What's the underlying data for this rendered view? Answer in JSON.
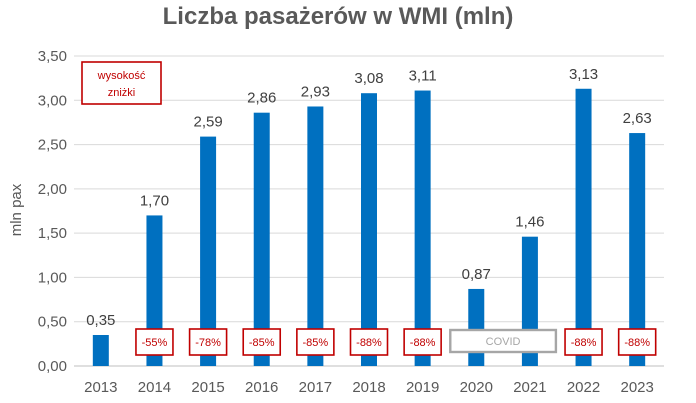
{
  "chart_data": {
    "type": "bar",
    "title": "Liczba pasażerów w WMI (mln)",
    "ylabel": "mln pax",
    "xlabel": "",
    "categories": [
      "2013",
      "2014",
      "2015",
      "2016",
      "2017",
      "2018",
      "2019",
      "2020",
      "2021",
      "2022",
      "2023"
    ],
    "values": [
      0.35,
      1.7,
      2.59,
      2.86,
      2.93,
      3.08,
      3.11,
      0.87,
      1.46,
      3.13,
      2.63
    ],
    "value_labels": [
      "0,35",
      "1,70",
      "2,59",
      "2,86",
      "2,93",
      "3,08",
      "3,11",
      "0,87",
      "1,46",
      "3,13",
      "2,63"
    ],
    "ylim": [
      0,
      3.5
    ],
    "yticks": [
      0,
      0.5,
      1.0,
      1.5,
      2.0,
      2.5,
      3.0,
      3.5
    ],
    "ytick_labels": [
      "0,00",
      "0,50",
      "1,00",
      "1,50",
      "2,00",
      "2,50",
      "3,00",
      "3,50"
    ],
    "grid": true,
    "bar_color": "#0070c0",
    "discounts": [
      {
        "category": "2014",
        "label": "-55%"
      },
      {
        "category": "2015",
        "label": "-78%"
      },
      {
        "category": "2016",
        "label": "-85%"
      },
      {
        "category": "2017",
        "label": "-85%"
      },
      {
        "category": "2018",
        "label": "-88%"
      },
      {
        "category": "2019",
        "label": "-88%"
      },
      {
        "category": "2022",
        "label": "-88%"
      },
      {
        "category": "2023",
        "label": "-88%"
      }
    ],
    "discount_color": "#c00000",
    "covid": {
      "label": "COVID",
      "categories": [
        "2020",
        "2021"
      ],
      "color": "#a6a6a6"
    },
    "legend": {
      "lines": [
        "wysokość",
        "zniżki"
      ],
      "placement": "top-left"
    }
  }
}
